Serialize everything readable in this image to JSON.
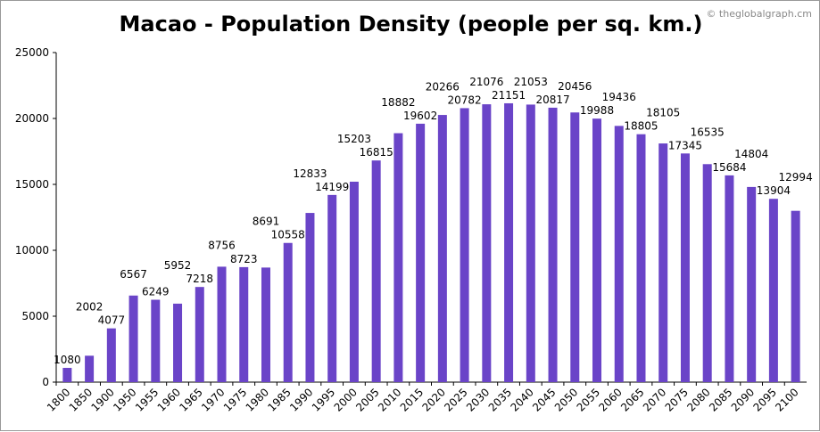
{
  "chart_data": {
    "type": "bar",
    "title": "Macao - Population Density (people per sq. km.)",
    "credit": "© theglobalgraph.cm",
    "categories": [
      "1800",
      "1850",
      "1900",
      "1950",
      "1955",
      "1960",
      "1965",
      "1970",
      "1975",
      "1980",
      "1985",
      "1990",
      "1995",
      "2000",
      "2005",
      "2010",
      "2015",
      "2020",
      "2025",
      "2030",
      "2035",
      "2040",
      "2045",
      "2050",
      "2055",
      "2060",
      "2065",
      "2070",
      "2075",
      "2080",
      "2085",
      "2090",
      "2095",
      "2100"
    ],
    "values": [
      1080,
      2002,
      4077,
      6567,
      6249,
      5952,
      7218,
      8756,
      8723,
      8691,
      10558,
      12833,
      14199,
      15203,
      16815,
      18882,
      19602,
      20266,
      20782,
      21076,
      21151,
      21053,
      20817,
      20456,
      19988,
      19436,
      18805,
      18105,
      17345,
      16535,
      15684,
      14804,
      13904,
      12994
    ],
    "yticks": [
      0,
      5000,
      10000,
      15000,
      20000,
      25000
    ],
    "ylim": [
      0,
      25000
    ],
    "bar_color": "#6a44c8",
    "grid": false
  }
}
